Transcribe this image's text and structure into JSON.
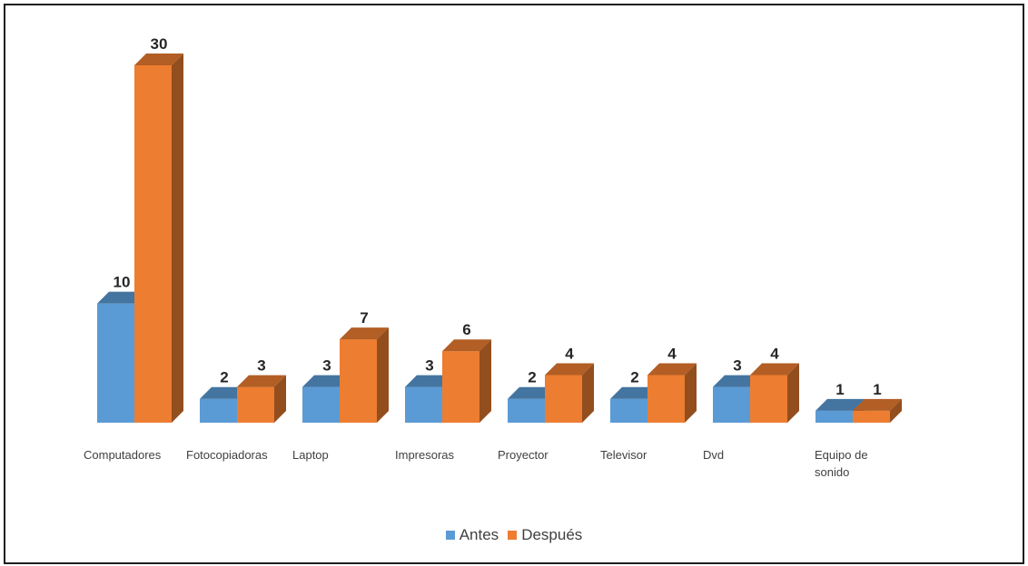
{
  "chart_data": {
    "type": "bar",
    "style": "3d-clustered-column",
    "categories": [
      "Computadores",
      "Fotocopiadoras",
      "Laptop",
      "Impresoras",
      "Proyector",
      "Televisor",
      "Dvd",
      "Equipo de sonido"
    ],
    "series": [
      {
        "name": "Antes",
        "color": "#5b9bd5",
        "values": [
          10,
          2,
          3,
          3,
          2,
          2,
          3,
          1
        ]
      },
      {
        "name": "Después",
        "color": "#ed7d31",
        "values": [
          30,
          3,
          7,
          6,
          4,
          4,
          4,
          1
        ]
      }
    ],
    "data_labels": true,
    "legend_position": "bottom",
    "grid": false,
    "ylim": [
      0,
      30
    ]
  }
}
